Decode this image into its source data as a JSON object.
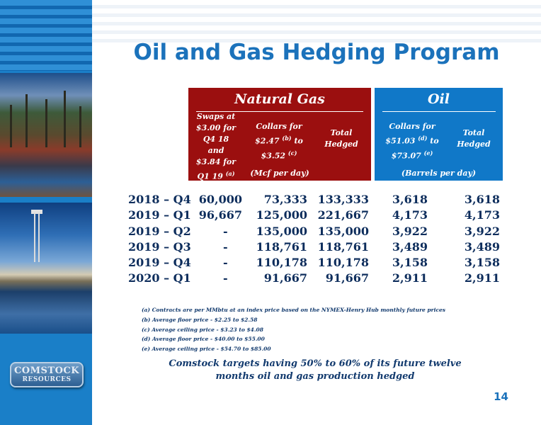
{
  "title": "Oil and Gas Hedging Program",
  "page_number": "14",
  "logo": {
    "line1": "COMSTOCK",
    "line2": "RESOURCES"
  },
  "natural_gas": {
    "heading": "Natural Gas",
    "col1": [
      "Swaps at",
      "$3.00 for",
      "Q4 18 and",
      "$3.84 for",
      "Q1 19"
    ],
    "col1_sup": "(a)",
    "col2": {
      "line1": "Collars for",
      "line2_pre": "$2.47",
      "line2_sup": "(b)",
      "line2_post": "to",
      "line3_pre": "$3.52",
      "line3_sup": "(c)"
    },
    "col3": [
      "Total",
      "Hedged"
    ],
    "unit": "(Mcf per day)"
  },
  "oil": {
    "heading": "Oil",
    "col1": {
      "line1": "Collars for",
      "line2_pre": "$51.03",
      "line2_sup": "(d)",
      "line2_post": "to",
      "line3_pre": "$73.07",
      "line3_sup": "(e)"
    },
    "col2": [
      "Total",
      "Hedged"
    ],
    "unit": "(Barrels per day)"
  },
  "rows": [
    {
      "period": "2018 – Q4",
      "swaps": "60,000",
      "collars": "73,333",
      "gas_total": "133,333",
      "oil_collars": "3,618",
      "oil_total": "3,618"
    },
    {
      "period": "2019 – Q1",
      "swaps": "96,667",
      "collars": "125,000",
      "gas_total": "221,667",
      "oil_collars": "4,173",
      "oil_total": "4,173"
    },
    {
      "period": "2019 – Q2",
      "swaps": "-",
      "collars": "135,000",
      "gas_total": "135,000",
      "oil_collars": "3,922",
      "oil_total": "3,922"
    },
    {
      "period": "2019 – Q3",
      "swaps": "-",
      "collars": "118,761",
      "gas_total": "118,761",
      "oil_collars": "3,489",
      "oil_total": "3,489"
    },
    {
      "period": "2019 – Q4",
      "swaps": "-",
      "collars": "110,178",
      "gas_total": "110,178",
      "oil_collars": "3,158",
      "oil_total": "3,158"
    },
    {
      "period": "2020 – Q1",
      "swaps": "-",
      "collars": "91,667",
      "gas_total": "91,667",
      "oil_collars": "2,911",
      "oil_total": "2,911"
    }
  ],
  "footnotes": [
    "(a) Contracts are per MMbtu at an index price based on the NYMEX-Henry Hub monthly future prices",
    "(b) Average floor price - $2.25 to $2.58",
    "(c) Average ceiling price - $3.23 to $4.08",
    "(d) Average floor price - $40.00 to $55.00",
    "(e) Average ceiling price - $54.70 to $85.00"
  ],
  "summary": [
    "Comstock targets having 50% to 60% of its future twelve",
    "months oil and gas production hedged"
  ]
}
